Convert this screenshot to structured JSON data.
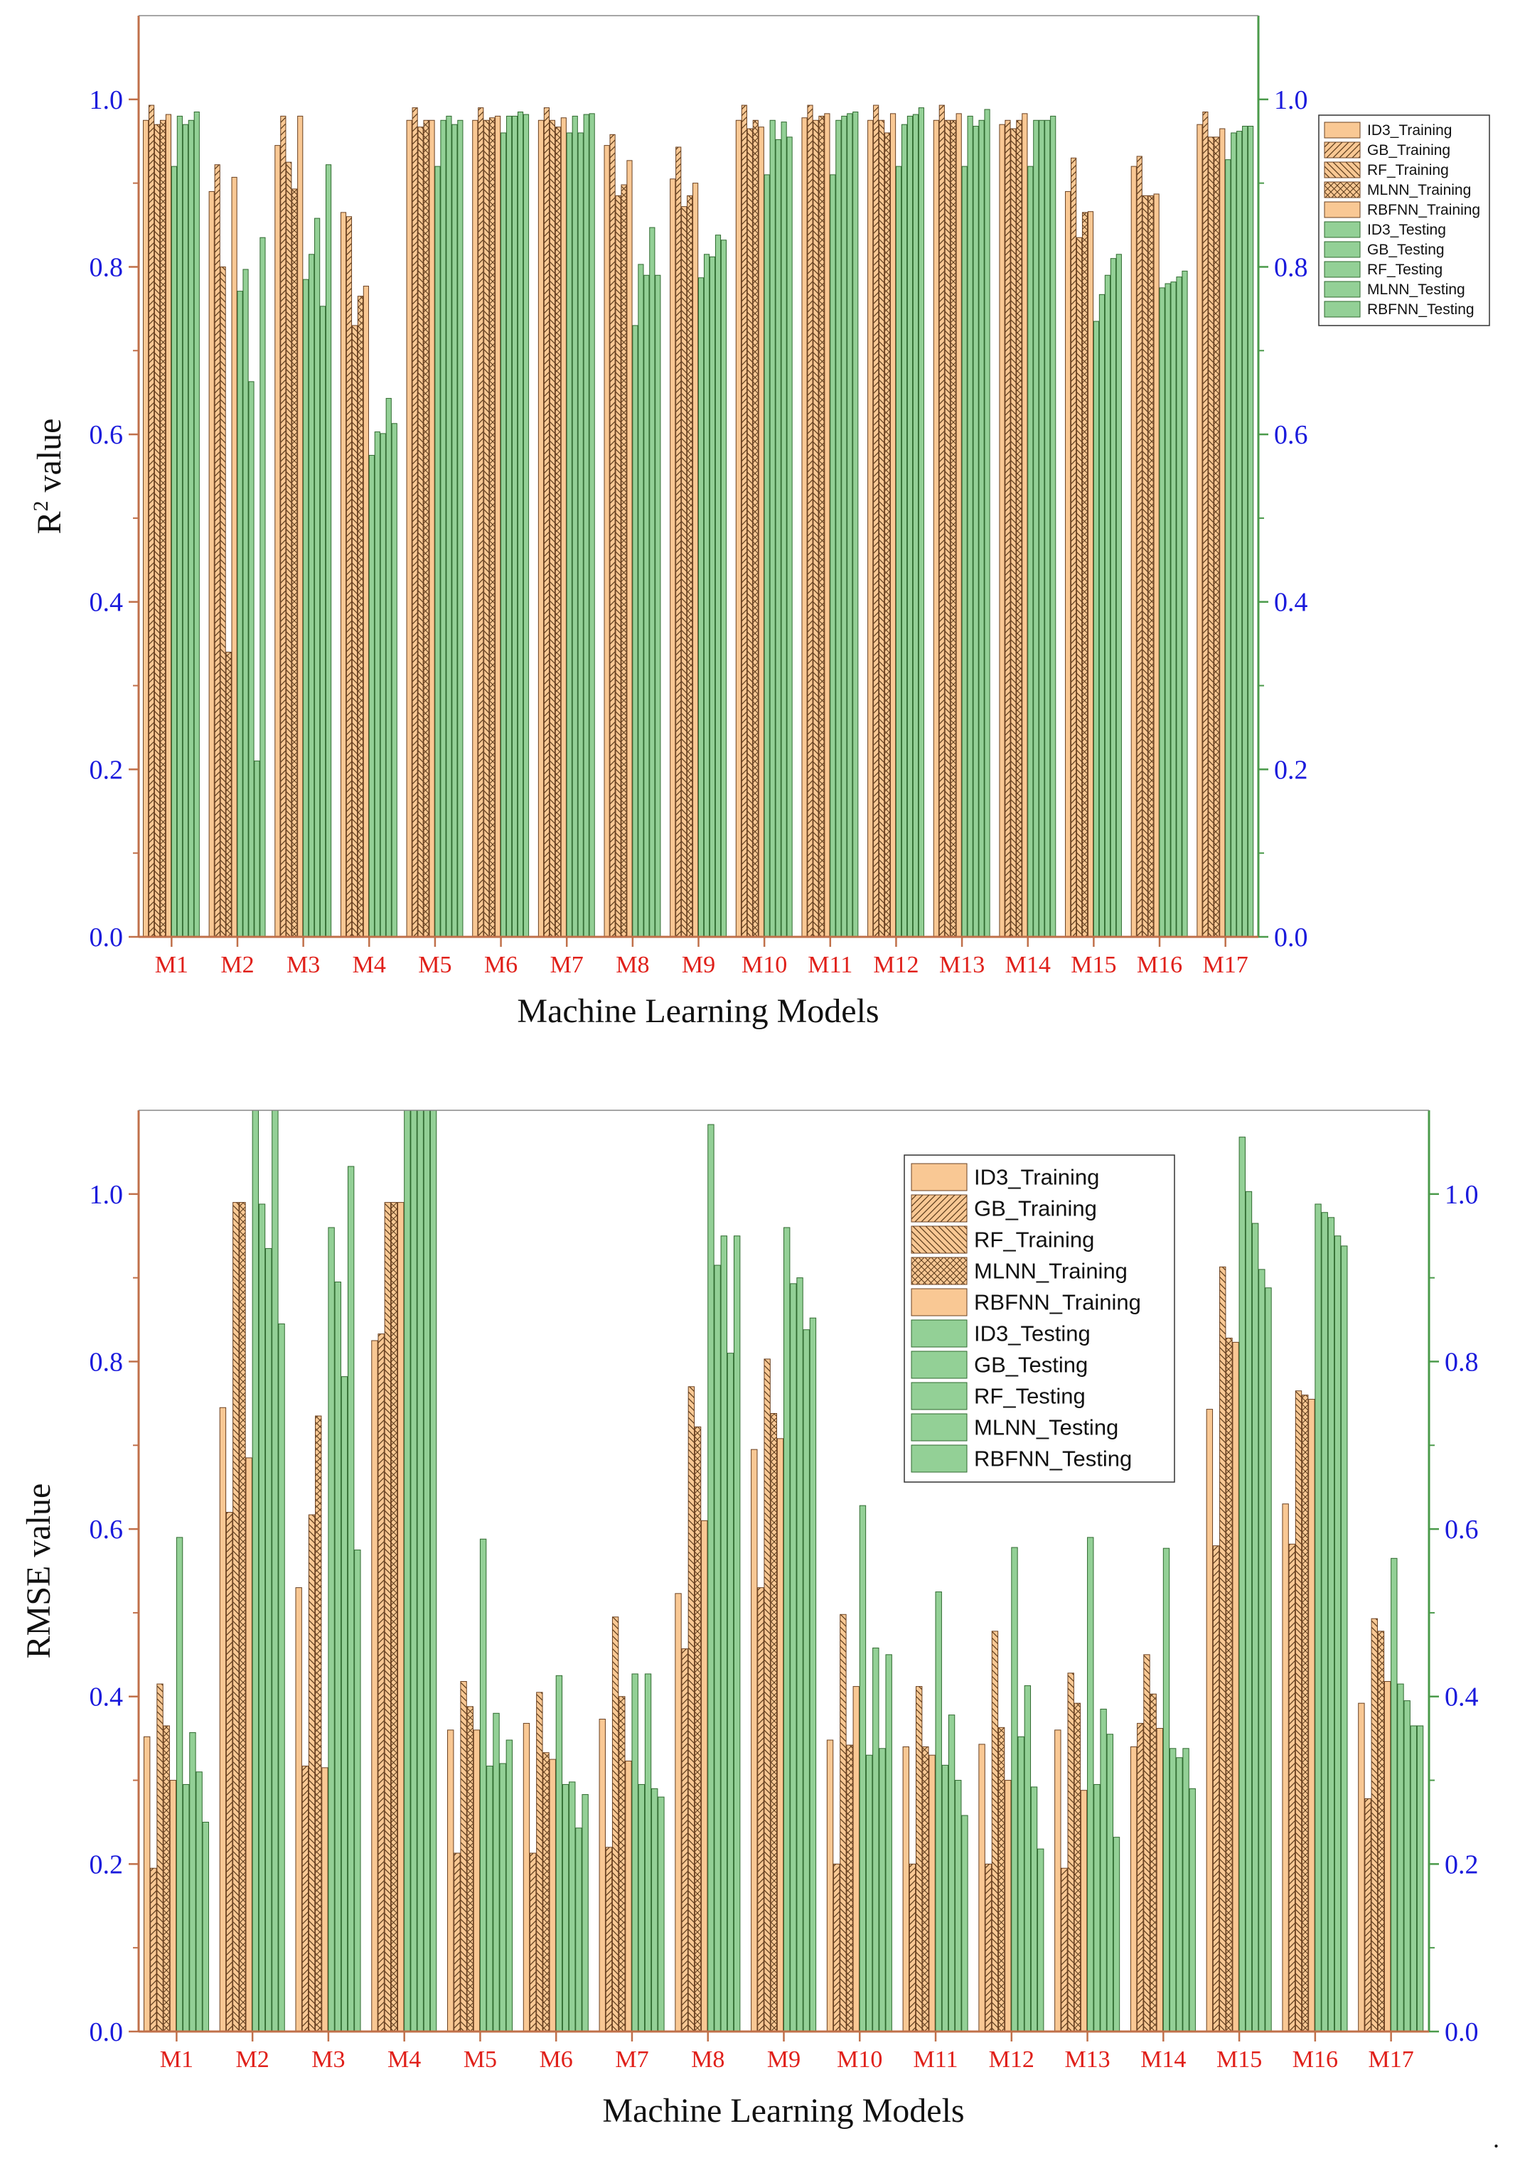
{
  "series_names": [
    "ID3_Training",
    "GB_Training",
    "RF_Training",
    "MLNN_Training",
    "RBFNN_Training",
    "ID3_Testing",
    "GB_Testing",
    "RF_Testing",
    "MLNN_Testing",
    "RBFNN_Testing"
  ],
  "colors": {
    "training": "#f9c894",
    "testing": "#93d096",
    "left_axis": "#c0704a",
    "right_axis": "#4a9a4a",
    "tick_label": "#1a1adc",
    "category_label": "#e0201a"
  },
  "trailing_mark": ".",
  "chart_data": [
    {
      "type": "bar",
      "title": "",
      "xlabel": "Machine Learning Models",
      "ylabel_main": "R",
      "ylabel_sup": "2",
      "ylabel_rest": " value",
      "ylim": [
        0,
        1.1
      ],
      "yticks": [
        "0.0",
        "0.2",
        "0.4",
        "0.6",
        "0.8",
        "1.0"
      ],
      "legend_position": "top-right outside",
      "categories": [
        "M1",
        "M2",
        "M3",
        "M4",
        "M5",
        "M6",
        "M7",
        "M8",
        "M9",
        "M10",
        "M11",
        "M12",
        "M13",
        "M14",
        "M15",
        "M16",
        "M17"
      ],
      "series": [
        {
          "name": "ID3_Training",
          "values": [
            0.975,
            0.89,
            0.945,
            0.865,
            0.975,
            0.975,
            0.975,
            0.945,
            0.905,
            0.975,
            0.978,
            0.975,
            0.975,
            0.97,
            0.89,
            0.92,
            0.97
          ]
        },
        {
          "name": "GB_Training",
          "values": [
            0.993,
            0.922,
            0.98,
            0.86,
            0.99,
            0.99,
            0.99,
            0.958,
            0.943,
            0.993,
            0.993,
            0.993,
            0.993,
            0.975,
            0.93,
            0.932,
            0.985
          ]
        },
        {
          "name": "RF_Training",
          "values": [
            0.97,
            0.8,
            0.925,
            0.73,
            0.967,
            0.975,
            0.975,
            0.885,
            0.872,
            0.965,
            0.975,
            0.975,
            0.975,
            0.965,
            0.835,
            0.885,
            0.955
          ]
        },
        {
          "name": "MLNN_Training",
          "values": [
            0.975,
            0.34,
            0.893,
            0.765,
            0.975,
            0.978,
            0.967,
            0.898,
            0.885,
            0.975,
            0.98,
            0.96,
            0.975,
            0.975,
            0.865,
            0.885,
            0.955
          ]
        },
        {
          "name": "RBFNN_Training",
          "values": [
            0.982,
            0.907,
            0.98,
            0.777,
            0.975,
            0.98,
            0.978,
            0.927,
            0.9,
            0.967,
            0.983,
            0.983,
            0.983,
            0.983,
            0.866,
            0.887,
            0.965
          ]
        },
        {
          "name": "ID3_Testing",
          "values": [
            0.92,
            0.771,
            0.785,
            0.575,
            0.92,
            0.96,
            0.96,
            0.73,
            0.787,
            0.91,
            0.91,
            0.92,
            0.92,
            0.92,
            0.735,
            0.775,
            0.928
          ]
        },
        {
          "name": "GB_Testing",
          "values": [
            0.98,
            0.797,
            0.815,
            0.603,
            0.975,
            0.98,
            0.98,
            0.803,
            0.815,
            0.975,
            0.975,
            0.97,
            0.98,
            0.975,
            0.767,
            0.78,
            0.96
          ]
        },
        {
          "name": "RF_Testing",
          "values": [
            0.97,
            0.663,
            0.858,
            0.601,
            0.98,
            0.98,
            0.96,
            0.79,
            0.812,
            0.952,
            0.98,
            0.98,
            0.968,
            0.975,
            0.79,
            0.782,
            0.962
          ]
        },
        {
          "name": "MLNN_Testing",
          "values": [
            0.975,
            0.21,
            0.753,
            0.643,
            0.97,
            0.985,
            0.982,
            0.847,
            0.838,
            0.973,
            0.983,
            0.982,
            0.975,
            0.975,
            0.81,
            0.788,
            0.968
          ]
        },
        {
          "name": "RBFNN_Testing",
          "values": [
            0.985,
            0.835,
            0.922,
            0.613,
            0.975,
            0.982,
            0.983,
            0.79,
            0.832,
            0.955,
            0.985,
            0.99,
            0.988,
            0.98,
            0.815,
            0.795,
            0.968
          ]
        }
      ]
    },
    {
      "type": "bar",
      "title": "",
      "xlabel": "Machine Learning Models",
      "ylabel_main": "RMSE value",
      "ylabel_sup": "",
      "ylabel_rest": "",
      "ylim": [
        0,
        1.1
      ],
      "yticks": [
        "0.0",
        "0.2",
        "0.4",
        "0.6",
        "0.8",
        "1.0"
      ],
      "legend_position": "top-right inside",
      "categories": [
        "M1",
        "M2",
        "M3",
        "M4",
        "M5",
        "M6",
        "M7",
        "M8",
        "M9",
        "M10",
        "M11",
        "M12",
        "M13",
        "M14",
        "M15",
        "M16",
        "M17"
      ],
      "series": [
        {
          "name": "ID3_Training",
          "values": [
            0.352,
            0.745,
            0.53,
            0.825,
            0.36,
            0.368,
            0.373,
            0.523,
            0.695,
            0.348,
            0.34,
            0.343,
            0.36,
            0.34,
            0.743,
            0.63,
            0.392
          ]
        },
        {
          "name": "GB_Training",
          "values": [
            0.195,
            0.62,
            0.317,
            0.833,
            0.213,
            0.213,
            0.22,
            0.457,
            0.53,
            0.2,
            0.2,
            0.2,
            0.195,
            0.368,
            0.58,
            0.582,
            0.278
          ]
        },
        {
          "name": "RF_Training",
          "values": [
            0.415,
            0.99,
            0.617,
            0.99,
            0.418,
            0.405,
            0.495,
            0.77,
            0.803,
            0.498,
            0.412,
            0.478,
            0.428,
            0.45,
            0.913,
            0.765,
            0.493
          ]
        },
        {
          "name": "MLNN_Training",
          "values": [
            0.365,
            0.99,
            0.735,
            0.99,
            0.388,
            0.333,
            0.4,
            0.722,
            0.738,
            0.342,
            0.34,
            0.363,
            0.392,
            0.403,
            0.828,
            0.76,
            0.478
          ]
        },
        {
          "name": "RBFNN_Training",
          "values": [
            0.3,
            0.685,
            0.315,
            0.99,
            0.36,
            0.325,
            0.323,
            0.61,
            0.708,
            0.412,
            0.33,
            0.3,
            0.288,
            0.362,
            0.823,
            0.755,
            0.418
          ]
        },
        {
          "name": "ID3_Testing",
          "values": [
            0.59,
            1.15,
            0.96,
            1.15,
            0.588,
            0.425,
            0.427,
            1.083,
            0.96,
            0.628,
            0.525,
            0.578,
            0.59,
            0.577,
            1.068,
            0.988,
            0.565
          ]
        },
        {
          "name": "GB_Testing",
          "values": [
            0.295,
            0.988,
            0.895,
            1.15,
            0.317,
            0.295,
            0.295,
            0.915,
            0.893,
            0.33,
            0.318,
            0.352,
            0.295,
            0.338,
            1.003,
            0.978,
            0.415
          ]
        },
        {
          "name": "RF_Testing",
          "values": [
            0.357,
            0.935,
            0.782,
            1.15,
            0.38,
            0.298,
            0.427,
            0.95,
            0.9,
            0.458,
            0.378,
            0.413,
            0.385,
            0.327,
            0.965,
            0.972,
            0.395
          ]
        },
        {
          "name": "MLNN_Testing",
          "values": [
            0.31,
            1.15,
            1.033,
            1.15,
            0.32,
            0.243,
            0.29,
            0.81,
            0.838,
            0.338,
            0.3,
            0.292,
            0.355,
            0.338,
            0.91,
            0.95,
            0.365
          ]
        },
        {
          "name": "RBFNN_Testing",
          "values": [
            0.25,
            0.845,
            0.575,
            1.15,
            0.348,
            0.283,
            0.28,
            0.95,
            0.852,
            0.45,
            0.258,
            0.218,
            0.232,
            0.29,
            0.888,
            0.938,
            0.365
          ]
        }
      ]
    }
  ]
}
